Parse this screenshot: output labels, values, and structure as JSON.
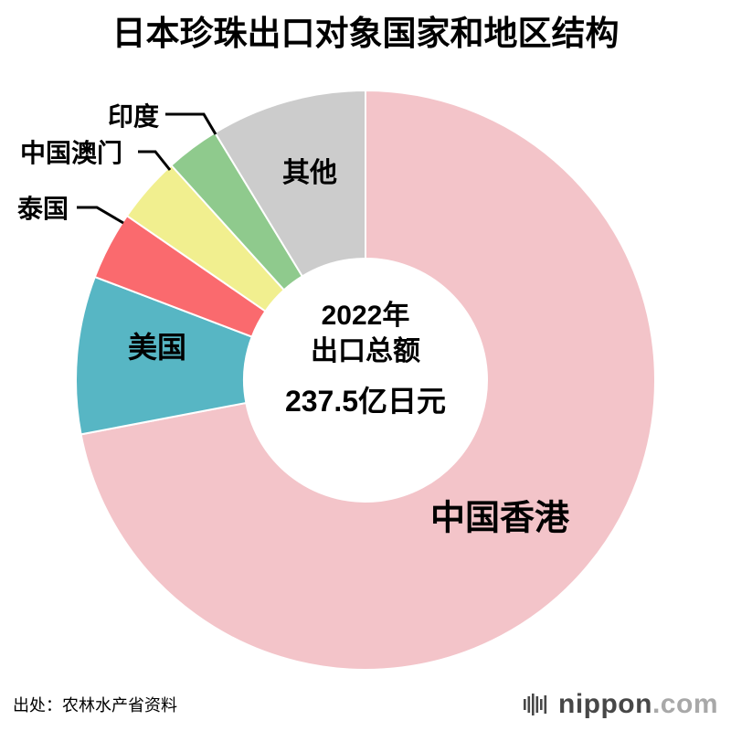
{
  "title": "日本珍珠出口对象国家和地区结构",
  "chart_data": {
    "type": "pie",
    "donut": true,
    "title": "日本珍珠出口对象国家和地区结构",
    "start_angle_deg": 0,
    "direction": "clockwise",
    "inner_radius_ratio": 0.42,
    "unit": "percent_share_estimated",
    "center_label": {
      "line1": "2022年",
      "line2": "出口总额",
      "total": "237.5亿日元"
    },
    "slices": [
      {
        "id": "hongkong",
        "label": "中国香港",
        "value": 72.0,
        "color": "#f3c4c9",
        "label_placement": "inside"
      },
      {
        "id": "usa",
        "label": "美国",
        "value": 8.8,
        "color": "#57b6c4",
        "label_placement": "inside"
      },
      {
        "id": "thailand",
        "label": "泰国",
        "value": 3.8,
        "color": "#fa6a6e",
        "label_placement": "outside"
      },
      {
        "id": "macao",
        "label": "中国澳门",
        "value": 3.7,
        "color": "#f1ef8f",
        "label_placement": "outside"
      },
      {
        "id": "india",
        "label": "印度",
        "value": 3.0,
        "color": "#8fca8d",
        "label_placement": "outside"
      },
      {
        "id": "other",
        "label": "其他",
        "value": 8.7,
        "color": "#cccccc",
        "label_placement": "inside"
      }
    ]
  },
  "footer": {
    "source": "出处：农林水产省资料",
    "logo": {
      "name": "nippon",
      "tld": ".com"
    }
  }
}
